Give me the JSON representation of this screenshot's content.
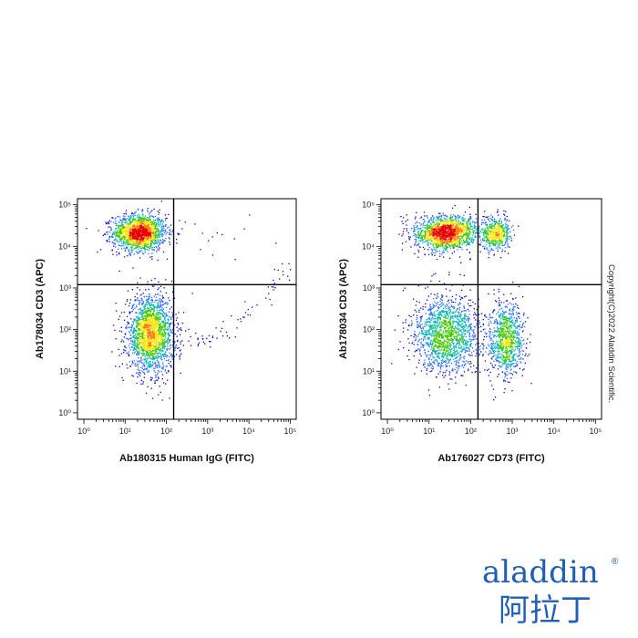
{
  "chart_data": [
    {
      "type": "scatter",
      "subtype": "flow-cytometry-density-dot-plot",
      "xlabel": "Ab180315 Human IgG (FITC)",
      "ylabel": "Ab178034 CD3 (APC)",
      "xscale": "log",
      "yscale": "log",
      "xlim": [
        0.7,
        140000
      ],
      "ylim": [
        0.7,
        140000
      ],
      "x_ticks": [
        {
          "value": 1,
          "label": "10⁰"
        },
        {
          "value": 10,
          "label": "10¹"
        },
        {
          "value": 100,
          "label": "10²"
        },
        {
          "value": 1000,
          "label": "10³"
        },
        {
          "value": 10000,
          "label": "10⁴"
        },
        {
          "value": 100000,
          "label": "10⁵"
        }
      ],
      "y_ticks": [
        {
          "value": 1,
          "label": "10⁰"
        },
        {
          "value": 10,
          "label": "10¹"
        },
        {
          "value": 100,
          "label": "10²"
        },
        {
          "value": 1000,
          "label": "10³"
        },
        {
          "value": 10000,
          "label": "10⁴"
        },
        {
          "value": 100000,
          "label": "10⁵"
        }
      ],
      "quadrant_gates": {
        "x": 150,
        "y": 1200
      },
      "populations": [
        {
          "center": [
            22,
            22000
          ],
          "spread": [
            0.32,
            0.22
          ],
          "count": 1600
        },
        {
          "center": [
            40,
            80
          ],
          "spread": [
            0.28,
            0.45
          ],
          "count": 1900
        },
        {
          "center": [
            200,
            40
          ],
          "spread": [
            0.35,
            0.5
          ],
          "count": 12
        }
      ],
      "diagonal_tail": {
        "from": [
          150,
          40
        ],
        "to": [
          90000,
          3500
        ],
        "count": 70
      },
      "upper_right_sparse": {
        "center": [
          2000,
          15000
        ],
        "spread": [
          0.8,
          0.35
        ],
        "count": 15
      },
      "density_colors": [
        "#0000cc",
        "#2b6bff",
        "#00b4b4",
        "#46c800",
        "#ffe600",
        "#ff7a00",
        "#e60000"
      ]
    },
    {
      "type": "scatter",
      "subtype": "flow-cytometry-density-dot-plot",
      "xlabel": "Ab176027 CD73 (FITC)",
      "ylabel": "Ab178034 CD3 (APC)",
      "xscale": "log",
      "yscale": "log",
      "xlim": [
        0.7,
        140000
      ],
      "ylim": [
        0.7,
        140000
      ],
      "x_ticks": [
        {
          "value": 1,
          "label": "10⁰"
        },
        {
          "value": 10,
          "label": "10¹"
        },
        {
          "value": 100,
          "label": "10²"
        },
        {
          "value": 1000,
          "label": "10³"
        },
        {
          "value": 10000,
          "label": "10⁴"
        },
        {
          "value": 100000,
          "label": "10⁵"
        }
      ],
      "y_ticks": [
        {
          "value": 1,
          "label": "10⁰"
        },
        {
          "value": 10,
          "label": "10¹"
        },
        {
          "value": 100,
          "label": "10²"
        },
        {
          "value": 1000,
          "label": "10³"
        },
        {
          "value": 10000,
          "label": "10⁴"
        },
        {
          "value": 100000,
          "label": "10⁵"
        }
      ],
      "quadrant_gates": {
        "x": 150,
        "y": 1200
      },
      "populations": [
        {
          "center": [
            25,
            22000
          ],
          "spread": [
            0.38,
            0.2
          ],
          "count": 1500
        },
        {
          "center": [
            400,
            20000
          ],
          "spread": [
            0.18,
            0.2
          ],
          "count": 500
        },
        {
          "center": [
            25,
            80
          ],
          "spread": [
            0.4,
            0.45
          ],
          "count": 1500
        },
        {
          "center": [
            700,
            60
          ],
          "spread": [
            0.22,
            0.45
          ],
          "count": 900
        }
      ],
      "density_colors": [
        "#0000cc",
        "#2b6bff",
        "#00b4b4",
        "#46c800",
        "#ffe600",
        "#ff7a00",
        "#e60000"
      ]
    }
  ],
  "copyright": "Copyright(C)2022 Aladdin Scientific.",
  "logo": {
    "wordmark": "aladdin",
    "registered_mark": "®",
    "chinese": "阿拉丁",
    "color": "#1f5fb4"
  }
}
